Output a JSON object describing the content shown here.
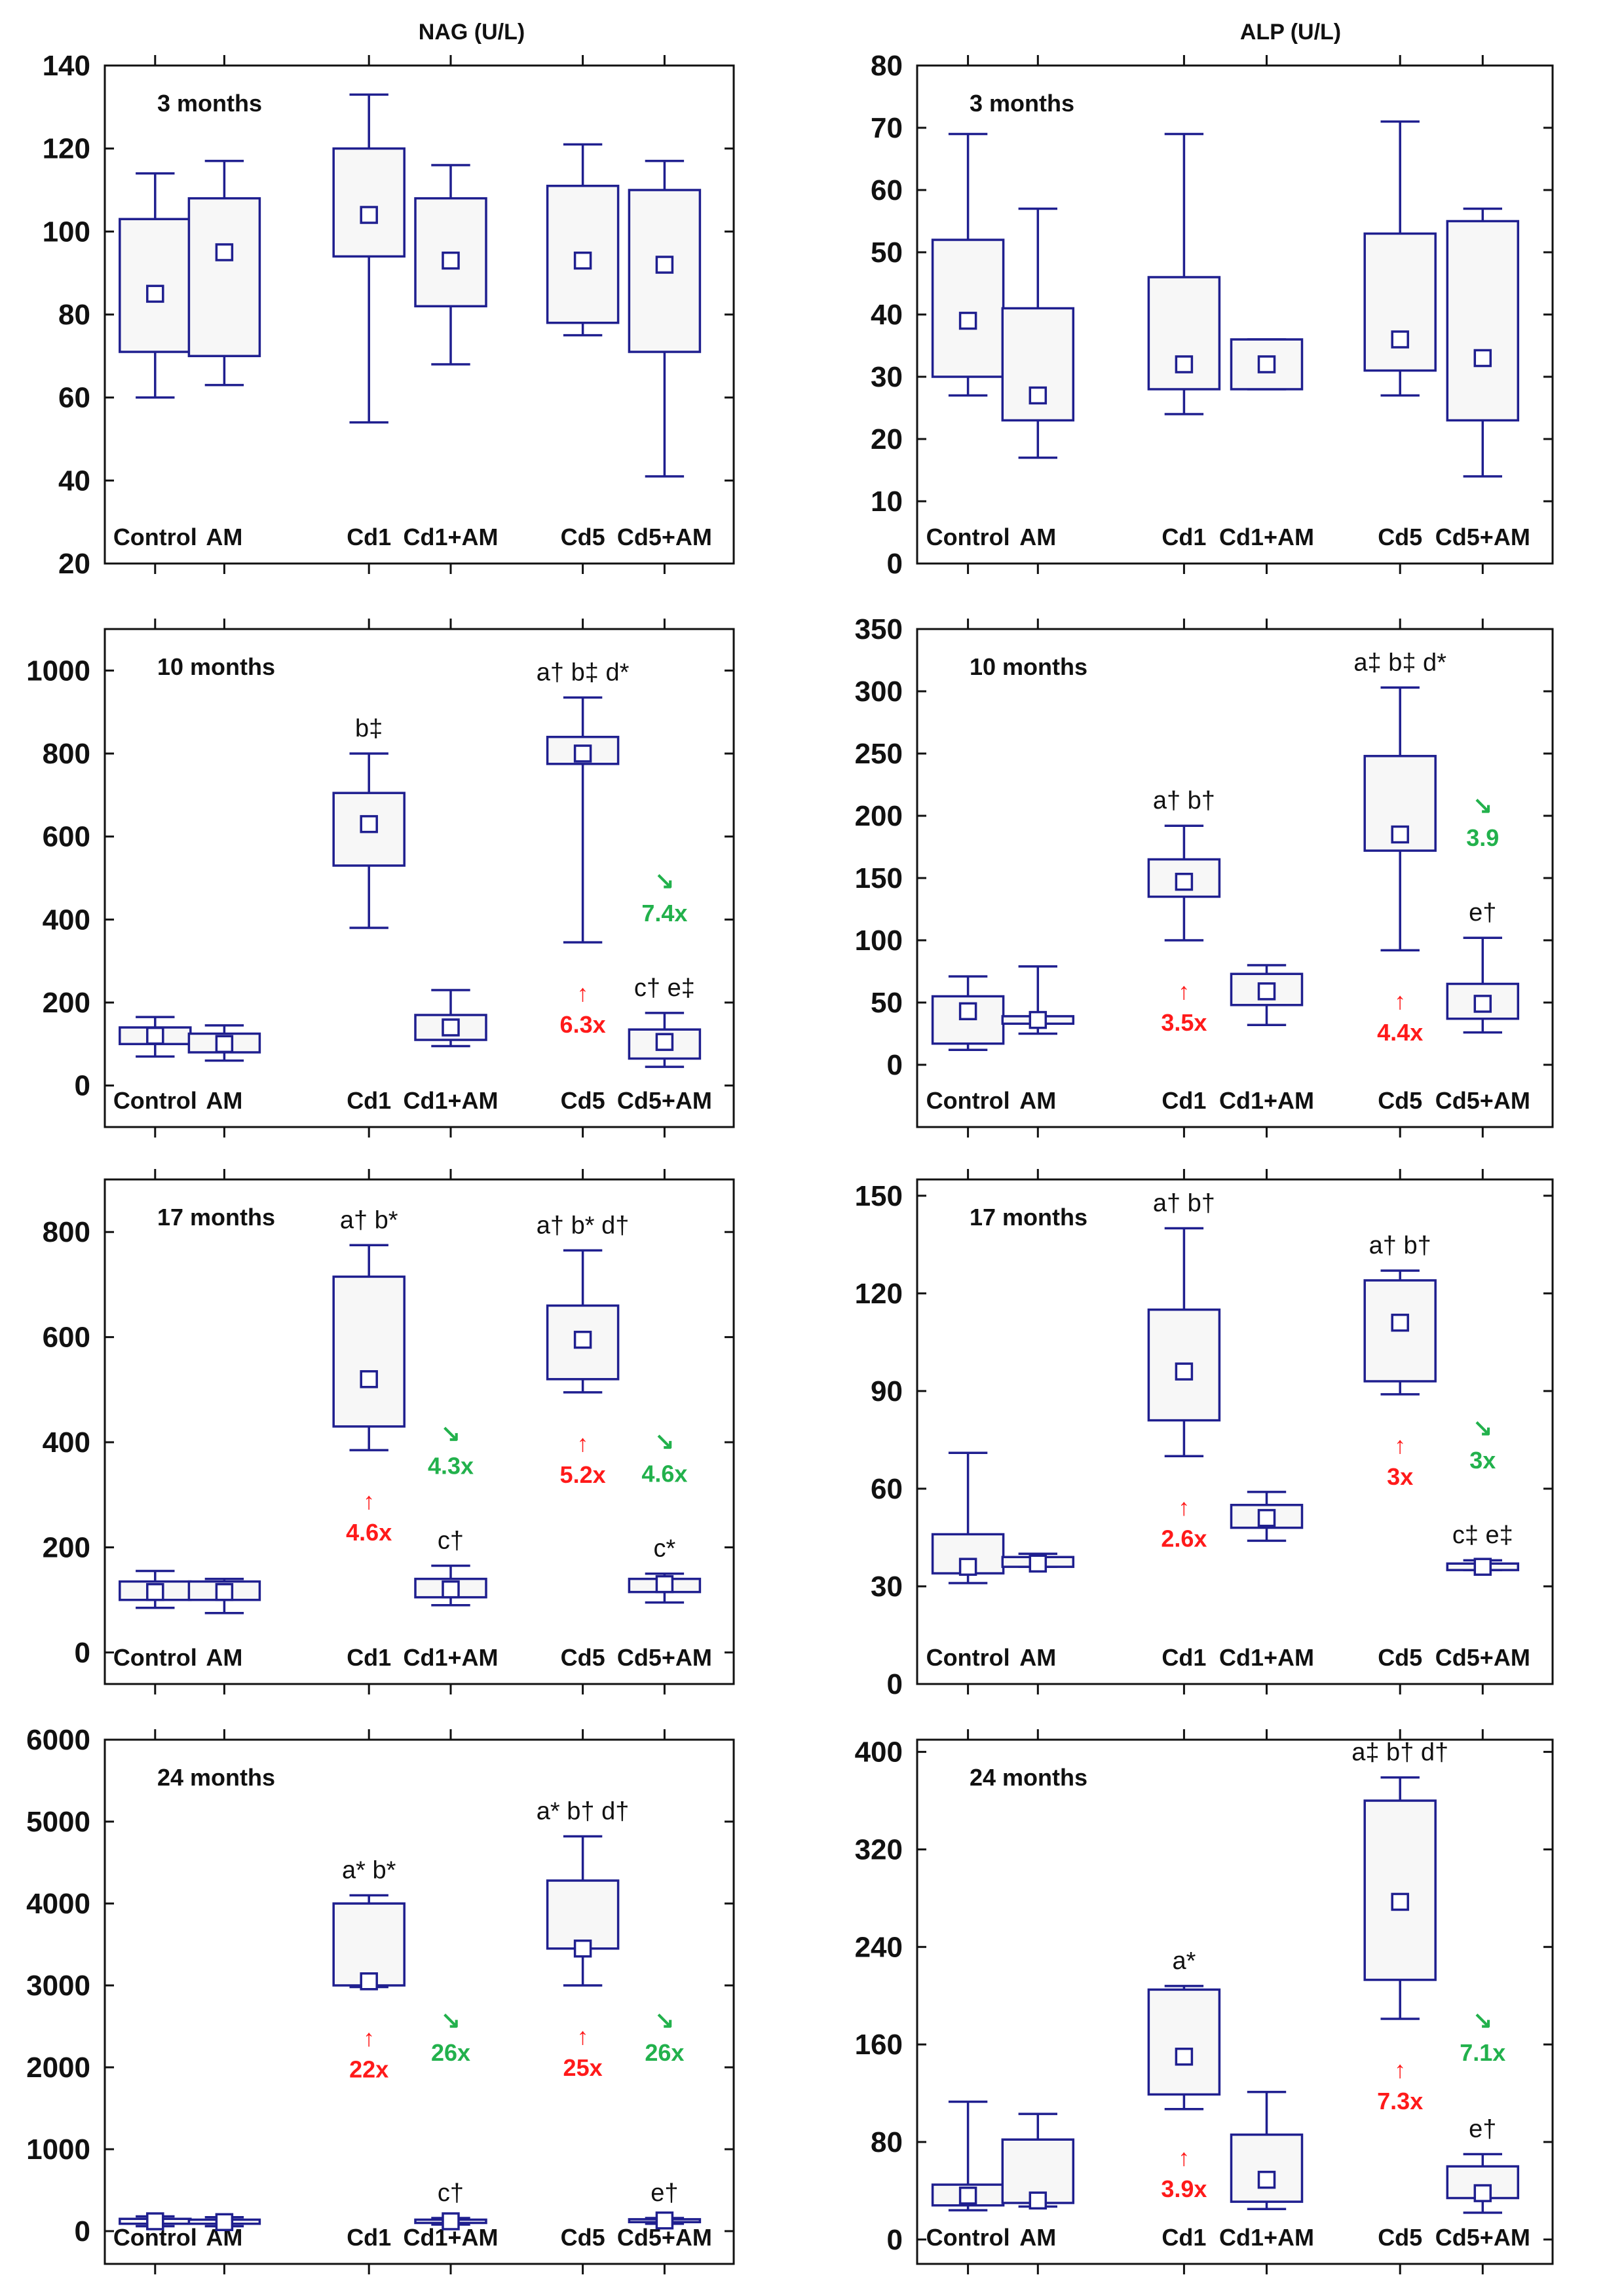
{
  "columns": {
    "left": "NAG (U/L)",
    "right": "ALP (U/L)"
  },
  "colors": {
    "box": "#1f1f8f",
    "box_fill": "#f7f7f7",
    "increase": "#ff1a1a",
    "decrease": "#22b14c",
    "frame": "#111111"
  },
  "chart_data": [
    {
      "type": "box",
      "column": "left",
      "title": "NAG (U/L)",
      "period": "3 months",
      "ylim": [
        20,
        140
      ],
      "yticks": [
        "20",
        "40",
        "60",
        "80",
        "100",
        "120",
        "140"
      ],
      "categories": [
        "Control",
        "AM",
        "Cd1",
        "Cd1+AM",
        "Cd5",
        "Cd5+AM"
      ],
      "boxes": [
        {
          "min": 60,
          "q1": 71,
          "mean": 85,
          "q3": 103,
          "max": 114
        },
        {
          "min": 63,
          "q1": 70,
          "mean": 95,
          "q3": 108,
          "max": 117
        },
        {
          "min": 54,
          "q1": 94,
          "mean": 104,
          "q3": 120,
          "max": 133
        },
        {
          "min": 68,
          "q1": 82,
          "mean": 93,
          "q3": 108,
          "max": 116
        },
        {
          "min": 75,
          "q1": 78,
          "mean": 93,
          "q3": 111,
          "max": 121
        },
        {
          "min": 41,
          "q1": 71,
          "mean": 92,
          "q3": 110,
          "max": 117
        }
      ],
      "significance": [
        "",
        "",
        "",
        "",
        "",
        ""
      ],
      "increase": [
        "",
        "",
        "",
        "",
        "",
        ""
      ],
      "decrease": [
        "",
        "",
        "",
        "",
        "",
        ""
      ]
    },
    {
      "type": "box",
      "column": "right",
      "title": "ALP (U/L)",
      "period": "3 months",
      "ylim": [
        0,
        80
      ],
      "yticks": [
        "0",
        "10",
        "20",
        "30",
        "40",
        "50",
        "60",
        "70",
        "80"
      ],
      "categories": [
        "Control",
        "AM",
        "Cd1",
        "Cd1+AM",
        "Cd5",
        "Cd5+AM"
      ],
      "boxes": [
        {
          "min": 27,
          "q1": 30,
          "mean": 39,
          "q3": 52,
          "max": 69
        },
        {
          "min": 17,
          "q1": 23,
          "mean": 27,
          "q3": 41,
          "max": 57
        },
        {
          "min": 24,
          "q1": 28,
          "mean": 32,
          "q3": 46,
          "max": 69
        },
        {
          "min": 28,
          "q1": 28,
          "mean": 32,
          "q3": 36,
          "max": 36
        },
        {
          "min": 27,
          "q1": 31,
          "mean": 36,
          "q3": 53,
          "max": 71
        },
        {
          "min": 14,
          "q1": 23,
          "mean": 33,
          "q3": 55,
          "max": 57
        }
      ],
      "significance": [
        "",
        "",
        "",
        "",
        "",
        ""
      ],
      "increase": [
        "",
        "",
        "",
        "",
        "",
        ""
      ],
      "decrease": [
        "",
        "",
        "",
        "",
        "",
        ""
      ]
    },
    {
      "type": "box",
      "column": "left",
      "title": "NAG (U/L)",
      "period": "10 months",
      "ylim": [
        -100,
        1100
      ],
      "yticks": [
        "0",
        "200",
        "400",
        "600",
        "800",
        "1000"
      ],
      "categories": [
        "Control",
        "AM",
        "Cd1",
        "Cd1+AM",
        "Cd5",
        "Cd5+AM"
      ],
      "boxes": [
        {
          "min": 70,
          "q1": 100,
          "mean": 120,
          "q3": 140,
          "max": 165
        },
        {
          "min": 60,
          "q1": 80,
          "mean": 100,
          "q3": 125,
          "max": 145
        },
        {
          "min": 380,
          "q1": 530,
          "mean": 630,
          "q3": 705,
          "max": 800
        },
        {
          "min": 95,
          "q1": 110,
          "mean": 140,
          "q3": 170,
          "max": 230
        },
        {
          "min": 345,
          "q1": 775,
          "mean": 800,
          "q3": 840,
          "max": 935
        },
        {
          "min": 45,
          "q1": 65,
          "mean": 105,
          "q3": 135,
          "max": 175
        }
      ],
      "significance": [
        "",
        "",
        "b‡",
        "",
        "a† b‡ d*",
        "c† e‡"
      ],
      "increase": [
        "",
        "",
        "",
        "",
        "6.3x",
        ""
      ],
      "decrease": [
        "",
        "",
        "",
        "",
        "",
        "7.4x"
      ]
    },
    {
      "type": "box",
      "column": "right",
      "title": "ALP (U/L)",
      "period": "10 months",
      "ylim": [
        -50,
        350
      ],
      "yticks": [
        "0",
        "50",
        "100",
        "150",
        "200",
        "250",
        "300",
        "350"
      ],
      "categories": [
        "Control",
        "AM",
        "Cd1",
        "Cd1+AM",
        "Cd5",
        "Cd5+AM"
      ],
      "boxes": [
        {
          "min": 12,
          "q1": 17,
          "mean": 43,
          "q3": 55,
          "max": 71
        },
        {
          "min": 25,
          "q1": 33,
          "mean": 36,
          "q3": 39,
          "max": 79
        },
        {
          "min": 100,
          "q1": 135,
          "mean": 147,
          "q3": 165,
          "max": 192
        },
        {
          "min": 32,
          "q1": 48,
          "mean": 59,
          "q3": 73,
          "max": 80
        },
        {
          "min": 92,
          "q1": 172,
          "mean": 185,
          "q3": 248,
          "max": 303
        },
        {
          "min": 26,
          "q1": 37,
          "mean": 49,
          "q3": 65,
          "max": 102
        }
      ],
      "significance": [
        "",
        "",
        "a† b†",
        "",
        "a‡ b‡ d*",
        "e†"
      ],
      "increase": [
        "",
        "",
        "3.5x",
        "",
        "4.4x",
        ""
      ],
      "decrease": [
        "",
        "",
        "",
        "",
        "",
        "3.9"
      ]
    },
    {
      "type": "box",
      "column": "left",
      "title": "NAG (U/L)",
      "period": "17 months",
      "ylim": [
        -60,
        900
      ],
      "yticks": [
        "0",
        "200",
        "400",
        "600",
        "800"
      ],
      "categories": [
        "Control",
        "AM",
        "Cd1",
        "Cd1+AM",
        "Cd5",
        "Cd5+AM"
      ],
      "boxes": [
        {
          "min": 85,
          "q1": 100,
          "mean": 115,
          "q3": 135,
          "max": 155
        },
        {
          "min": 75,
          "q1": 100,
          "mean": 115,
          "q3": 135,
          "max": 140
        },
        {
          "min": 385,
          "q1": 430,
          "mean": 520,
          "q3": 715,
          "max": 775
        },
        {
          "min": 90,
          "q1": 105,
          "mean": 120,
          "q3": 140,
          "max": 165
        },
        {
          "min": 495,
          "q1": 520,
          "mean": 595,
          "q3": 660,
          "max": 765
        },
        {
          "min": 95,
          "q1": 115,
          "mean": 130,
          "q3": 140,
          "max": 150
        }
      ],
      "significance": [
        "",
        "",
        "a† b*",
        "c†",
        "a† b* d†",
        "c*"
      ],
      "increase": [
        "",
        "",
        "4.6x",
        "",
        "5.2x",
        ""
      ],
      "decrease": [
        "",
        "",
        "",
        "4.3x",
        "",
        "4.6x"
      ]
    },
    {
      "type": "box",
      "column": "right",
      "title": "ALP (U/L)",
      "period": "17 months",
      "ylim": [
        0,
        155
      ],
      "yticks": [
        "0",
        "30",
        "60",
        "90",
        "120",
        "150"
      ],
      "categories": [
        "Control",
        "AM",
        "Cd1",
        "Cd1+AM",
        "Cd5",
        "Cd5+AM"
      ],
      "boxes": [
        {
          "min": 31,
          "q1": 34,
          "mean": 36,
          "q3": 46,
          "max": 71
        },
        {
          "min": 36,
          "q1": 36,
          "mean": 37,
          "q3": 39,
          "max": 40
        },
        {
          "min": 70,
          "q1": 81,
          "mean": 96,
          "q3": 115,
          "max": 140
        },
        {
          "min": 44,
          "q1": 48,
          "mean": 51,
          "q3": 55,
          "max": 59
        },
        {
          "min": 89,
          "q1": 93,
          "mean": 111,
          "q3": 124,
          "max": 127
        },
        {
          "min": 35,
          "q1": 35,
          "mean": 36,
          "q3": 37,
          "max": 38
        }
      ],
      "significance": [
        "",
        "",
        "a† b†",
        "",
        "a† b†",
        "c‡ e‡"
      ],
      "increase": [
        "",
        "",
        "2.6x",
        "",
        "3x",
        ""
      ],
      "decrease": [
        "",
        "",
        "",
        "",
        "",
        "3x"
      ]
    },
    {
      "type": "box",
      "column": "left",
      "title": "NAG (U/L)",
      "period": "24 months",
      "ylim": [
        -400,
        6000
      ],
      "yticks": [
        "0",
        "1000",
        "2000",
        "3000",
        "4000",
        "5000",
        "6000"
      ],
      "categories": [
        "Control",
        "AM",
        "Cd1",
        "Cd1+AM",
        "Cd5",
        "Cd5+AM"
      ],
      "boxes": [
        {
          "min": 60,
          "q1": 90,
          "mean": 120,
          "q3": 150,
          "max": 180
        },
        {
          "min": 60,
          "q1": 90,
          "mean": 110,
          "q3": 140,
          "max": 170
        },
        {
          "min": 2980,
          "q1": 3000,
          "mean": 3050,
          "q3": 4000,
          "max": 4100
        },
        {
          "min": 80,
          "q1": 100,
          "mean": 120,
          "q3": 140,
          "max": 160
        },
        {
          "min": 3000,
          "q1": 3450,
          "mean": 3450,
          "q3": 4280,
          "max": 4820
        },
        {
          "min": 90,
          "q1": 110,
          "mean": 130,
          "q3": 145,
          "max": 160
        }
      ],
      "significance": [
        "",
        "",
        "a* b*",
        "c†",
        "a* b† d†",
        "e†"
      ],
      "increase": [
        "",
        "",
        "22x",
        "",
        "25x",
        ""
      ],
      "decrease": [
        "",
        "",
        "",
        "26x",
        "",
        "26x"
      ]
    },
    {
      "type": "box",
      "column": "right",
      "title": "ALP (U/L)",
      "period": "24 months",
      "ylim": [
        -20,
        410
      ],
      "yticks": [
        "0",
        "80",
        "160",
        "240",
        "320",
        "400"
      ],
      "categories": [
        "Control",
        "AM",
        "Cd1",
        "Cd1+AM",
        "Cd5",
        "Cd5+AM"
      ],
      "boxes": [
        {
          "min": 24,
          "q1": 28,
          "mean": 36,
          "q3": 45,
          "max": 113
        },
        {
          "min": 27,
          "q1": 30,
          "mean": 32,
          "q3": 82,
          "max": 103
        },
        {
          "min": 107,
          "q1": 119,
          "mean": 150,
          "q3": 205,
          "max": 208
        },
        {
          "min": 25,
          "q1": 31,
          "mean": 49,
          "q3": 86,
          "max": 121
        },
        {
          "min": 181,
          "q1": 213,
          "mean": 277,
          "q3": 360,
          "max": 379
        },
        {
          "min": 22,
          "q1": 34,
          "mean": 38,
          "q3": 60,
          "max": 70
        }
      ],
      "significance": [
        "",
        "",
        "a*",
        "",
        "a‡ b† d†",
        "e†"
      ],
      "increase": [
        "",
        "",
        "3.9x",
        "",
        "7.3x",
        ""
      ],
      "decrease": [
        "",
        "",
        "",
        "",
        "",
        "7.1x"
      ]
    }
  ]
}
